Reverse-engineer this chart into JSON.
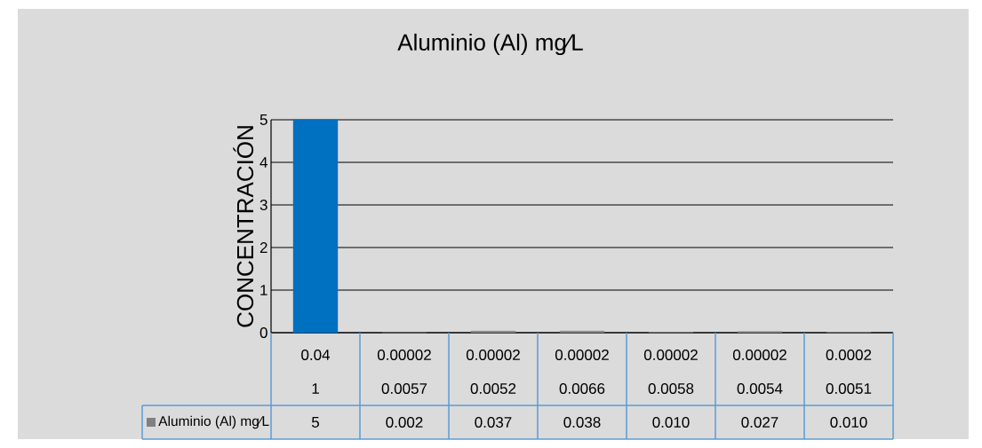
{
  "chart_data": {
    "type": "bar",
    "title": "Aluminio (Al) mg⁄L",
    "ylabel": "CONCENTRACIÓN",
    "categories": [
      "0.04",
      "0.00002",
      "0.00002",
      "0.00002",
      "0.00002",
      "0.00002",
      "0.0002"
    ],
    "annotations": [
      "1",
      "0.0057",
      "0.0052",
      "0.0066",
      "0.0058",
      "0.0054",
      "0.0051"
    ],
    "series": [
      {
        "name": "Aluminio (Al) mg⁄L",
        "color": "#808080",
        "colors": [
          "#0070c0",
          "#808080",
          "#808080",
          "#808080",
          "#808080",
          "#808080",
          "#808080"
        ],
        "values": [
          5,
          0.002,
          0.037,
          0.038,
          0.01,
          0.027,
          0.01
        ],
        "value_labels": [
          "5",
          "0.002",
          "0.037",
          "0.038",
          "0.010",
          "0.027",
          "0.010"
        ]
      }
    ],
    "ylim": [
      0,
      5
    ],
    "yticks": [
      0,
      1,
      2,
      3,
      4,
      5
    ],
    "grid": "y",
    "legend": "bottom"
  }
}
